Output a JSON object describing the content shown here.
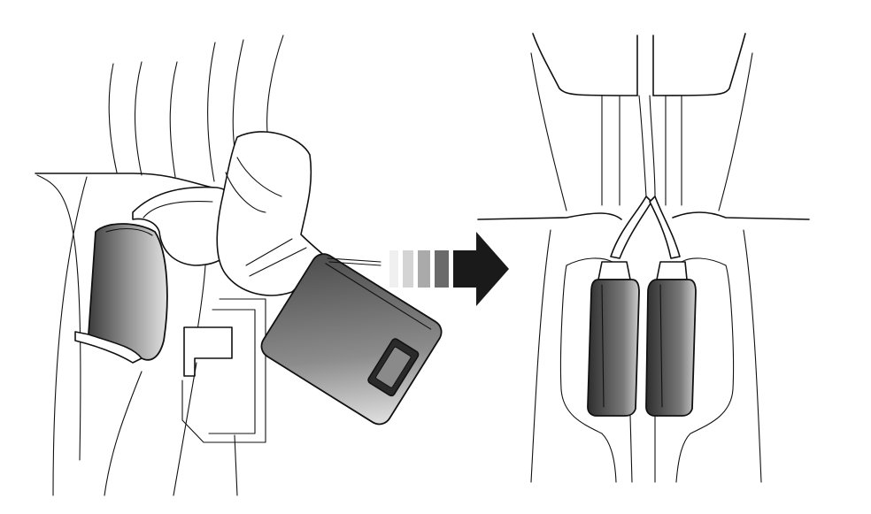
{
  "colors": {
    "background": "#ffffff",
    "line": "#111111",
    "buckle_dark": "#3a3a3a",
    "buckle_light": "#d8d8d8",
    "arrow_dark": "#1a1a1a"
  },
  "panels": {
    "left": {
      "icon": "seatbelt-buckle-unlatched-icon"
    },
    "arrow": {
      "icon": "dashed-arrow-right-icon"
    },
    "right": {
      "icon": "seatbelt-buckles-stowed-icon"
    }
  }
}
